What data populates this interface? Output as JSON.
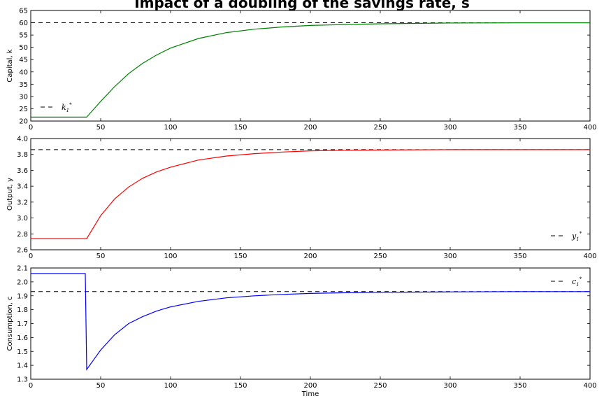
{
  "title": "Impact of a doubling of the savings rate, s",
  "chart_data": [
    {
      "type": "line",
      "ylabel": "Capital, k",
      "xlabel": "",
      "xlim": [
        0,
        400
      ],
      "ylim": [
        20,
        65
      ],
      "xticks": [
        0,
        50,
        100,
        150,
        200,
        250,
        300,
        350,
        400
      ],
      "yticks": [
        20,
        25,
        30,
        35,
        40,
        45,
        50,
        55,
        60,
        65
      ],
      "color": "#008000",
      "steady_state": 60,
      "legend": {
        "name": "k",
        "sub": "1",
        "sup": "*",
        "position": "lower-left"
      },
      "series": [
        {
          "x": [
            0,
            40,
            50,
            60,
            70,
            80,
            90,
            100,
            120,
            140,
            160,
            180,
            200,
            225,
            250,
            300,
            350,
            400
          ],
          "y": [
            21.6,
            21.6,
            28.0,
            34.0,
            39.3,
            43.5,
            46.9,
            49.7,
            53.6,
            56.0,
            57.4,
            58.3,
            58.9,
            59.3,
            59.6,
            59.9,
            60.0,
            60.0
          ]
        }
      ]
    },
    {
      "type": "line",
      "ylabel": "Output, y",
      "xlabel": "",
      "xlim": [
        0,
        400
      ],
      "ylim": [
        2.6,
        4.0
      ],
      "xticks": [
        0,
        50,
        100,
        150,
        200,
        250,
        300,
        350,
        400
      ],
      "yticks": [
        2.6,
        2.8,
        3.0,
        3.2,
        3.4,
        3.6,
        3.8,
        4.0
      ],
      "color": "#ff0000",
      "steady_state": 3.86,
      "legend": {
        "name": "y",
        "sub": "1",
        "sup": "*",
        "position": "lower-right"
      },
      "series": [
        {
          "x": [
            0,
            40,
            50,
            60,
            70,
            80,
            90,
            100,
            120,
            140,
            160,
            180,
            200,
            225,
            250,
            300,
            350,
            400
          ],
          "y": [
            2.74,
            2.74,
            3.03,
            3.24,
            3.39,
            3.5,
            3.58,
            3.64,
            3.73,
            3.78,
            3.81,
            3.83,
            3.845,
            3.852,
            3.856,
            3.86,
            3.86,
            3.86
          ]
        }
      ]
    },
    {
      "type": "line",
      "ylabel": "Consumption, c",
      "xlabel": "Time",
      "xlim": [
        0,
        400
      ],
      "ylim": [
        1.3,
        2.1
      ],
      "xticks": [
        0,
        50,
        100,
        150,
        200,
        250,
        300,
        350,
        400
      ],
      "yticks": [
        1.3,
        1.4,
        1.5,
        1.6,
        1.7,
        1.8,
        1.9,
        2.0,
        2.1
      ],
      "color": "#0000ff",
      "steady_state": 1.93,
      "legend": {
        "name": "c",
        "sub": "1",
        "sup": "*",
        "position": "upper-right"
      },
      "series": [
        {
          "x": [
            0,
            39,
            40,
            45,
            50,
            60,
            70,
            80,
            90,
            100,
            120,
            140,
            160,
            180,
            200,
            225,
            250,
            300,
            350,
            400
          ],
          "y": [
            2.06,
            2.06,
            1.37,
            1.44,
            1.51,
            1.62,
            1.7,
            1.75,
            1.79,
            1.82,
            1.86,
            1.885,
            1.9,
            1.91,
            1.917,
            1.922,
            1.925,
            1.928,
            1.93,
            1.93
          ]
        }
      ]
    }
  ]
}
